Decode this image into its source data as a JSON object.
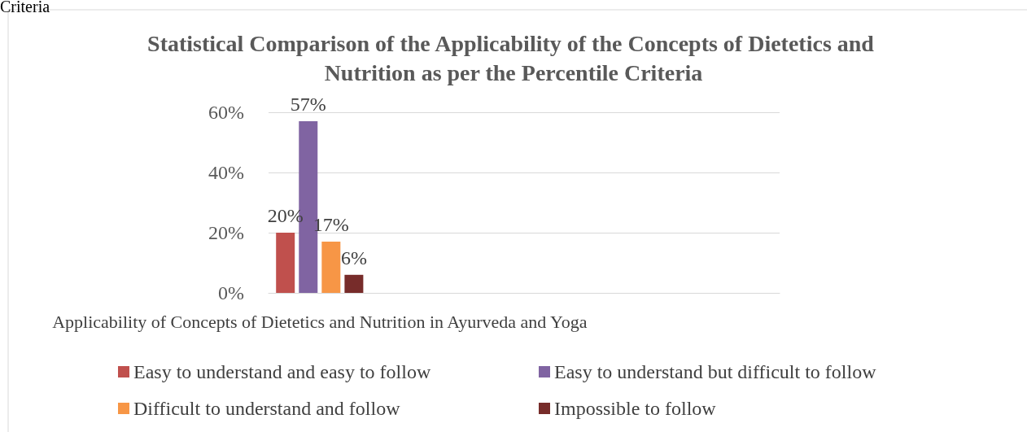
{
  "chart_data": {
    "type": "bar",
    "title": "Statistical Comparison of the Applicability of the Concepts of Dietetics and Nutrition as per the Percentile Criteria",
    "annotations": [
      "Criteria"
    ],
    "categories": [
      "Applicability of Concepts of Dietetics and Nutrition in Ayurveda and Yoga",
      null,
      null,
      null,
      null
    ],
    "series": [
      {
        "name": "Easy to understand and easy to follow",
        "color": "#c0504d",
        "values": [
          20,
          null,
          null,
          null,
          null
        ],
        "value_labels": [
          "20%",
          null,
          null,
          null,
          null
        ]
      },
      {
        "name": "Easy to understand but difficult to follow",
        "color": "#8064a2",
        "values": [
          57,
          null,
          null,
          null,
          null
        ],
        "value_labels": [
          "57%",
          null,
          null,
          null,
          null
        ]
      },
      {
        "name": "Difficult to understand and follow",
        "color": "#f79646",
        "values": [
          17,
          null,
          null,
          null,
          null
        ],
        "value_labels": [
          "17%",
          null,
          null,
          null,
          null
        ]
      },
      {
        "name": "Impossible to follow",
        "color": "#772c2a",
        "values": [
          6,
          null,
          null,
          null,
          null
        ],
        "value_labels": [
          "6%",
          null,
          null,
          null,
          null
        ]
      }
    ],
    "ylim": [
      0,
      60
    ],
    "yticks": [
      {
        "value": 0,
        "label": "0%"
      },
      {
        "value": 20,
        "label": "20%"
      },
      {
        "value": 40,
        "label": "40%"
      },
      {
        "value": 60,
        "label": "60%"
      }
    ],
    "grid": "y",
    "legend": "bottom"
  }
}
